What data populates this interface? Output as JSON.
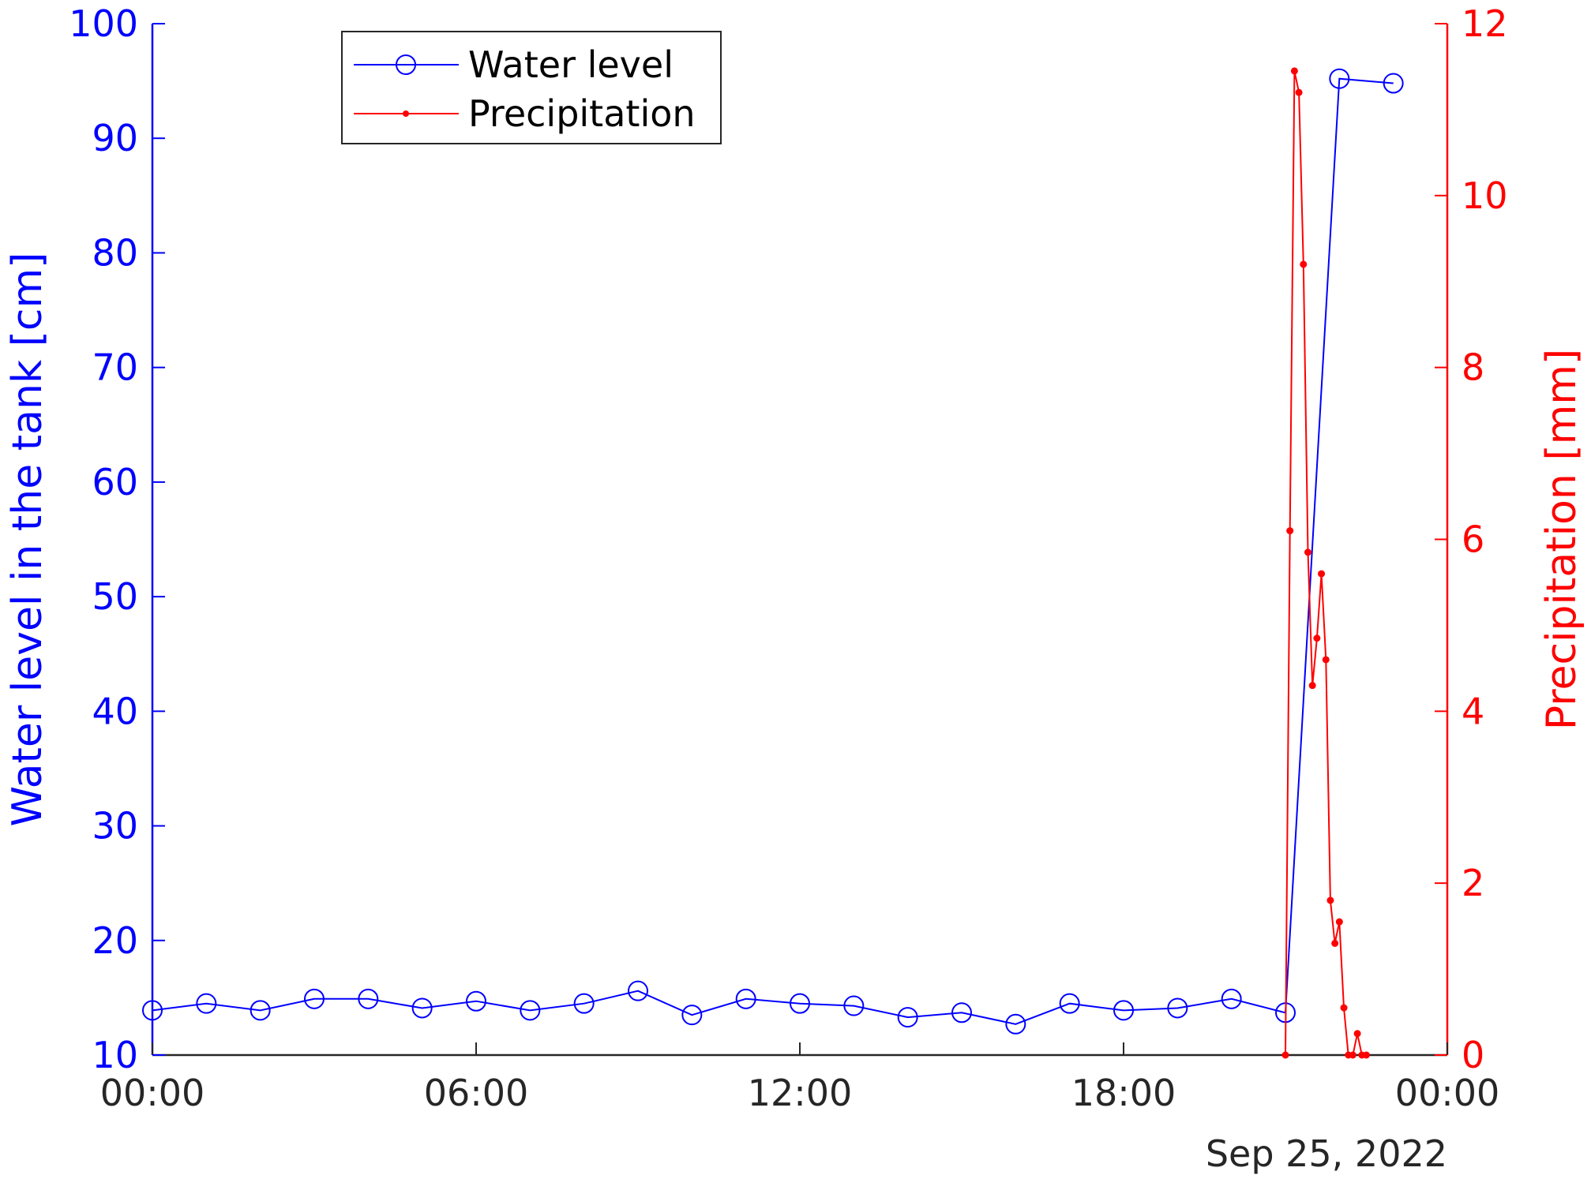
{
  "colors": {
    "water_level": "#0000ff",
    "precipitation": "#ff0000",
    "axis_x": "#262626",
    "background": "#ffffff"
  },
  "chart_data": {
    "type": "line",
    "title": "",
    "xlabel": "",
    "date_label": "Sep 25, 2022",
    "x_range": [
      "00:00",
      "24:00"
    ],
    "x_ticks": [
      "00:00",
      "06:00",
      "12:00",
      "18:00",
      "00:00"
    ],
    "y_left": {
      "label": "Water level in the tank [cm]",
      "range": [
        10,
        100
      ],
      "ticks": [
        "10",
        "20",
        "30",
        "40",
        "50",
        "60",
        "70",
        "80",
        "90",
        "100"
      ]
    },
    "y_right": {
      "label": "Precipitation [mm]",
      "range": [
        0,
        12
      ],
      "ticks": [
        "0",
        "2",
        "4",
        "6",
        "8",
        "10",
        "12"
      ]
    },
    "grid": false,
    "legend_position": "top-left",
    "series": [
      {
        "name": "Water level",
        "axis": "left",
        "marker": "circle",
        "x": [
          "00:00",
          "01:00",
          "02:00",
          "03:00",
          "04:00",
          "05:00",
          "06:00",
          "07:00",
          "08:00",
          "09:00",
          "10:00",
          "11:00",
          "12:00",
          "13:00",
          "14:00",
          "15:00",
          "16:00",
          "17:00",
          "18:00",
          "19:00",
          "20:00",
          "21:00",
          "22:00",
          "23:00"
        ],
        "values": [
          13.9,
          14.5,
          13.9,
          14.9,
          14.9,
          14.1,
          14.7,
          13.9,
          14.5,
          15.6,
          13.5,
          14.9,
          14.5,
          14.3,
          13.3,
          13.7,
          12.7,
          14.5,
          13.9,
          14.1,
          14.9,
          13.7,
          95.2,
          94.8
        ]
      },
      {
        "name": "Precipitation",
        "axis": "right",
        "marker": "dot",
        "x": [
          "21:00",
          "21:05",
          "21:10",
          "21:15",
          "21:20",
          "21:25",
          "21:30",
          "21:35",
          "21:40",
          "21:45",
          "21:50",
          "21:55",
          "22:00",
          "22:05",
          "22:10",
          "22:15",
          "22:20",
          "22:25",
          "22:30"
        ],
        "values": [
          0,
          6.1,
          11.45,
          11.2,
          9.2,
          5.85,
          4.3,
          4.85,
          5.6,
          4.6,
          1.8,
          1.3,
          1.55,
          0.55,
          0,
          0,
          0.25,
          0,
          0
        ]
      }
    ]
  }
}
